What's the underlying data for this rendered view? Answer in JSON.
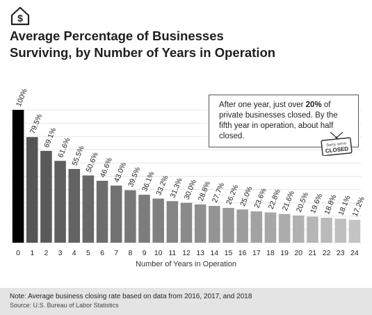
{
  "header": {
    "icon": "dollar-house-icon",
    "title_line1": "Average Percentage of Businesses",
    "title_line2": "Surviving, by Number of Years in Operation"
  },
  "callout": {
    "text_before": "After one year, just over ",
    "highlight": "20%",
    "text_after": " of private businesses closed. By the fifth year in operation, about half closed.",
    "sign_line1": "Sorry, we're",
    "sign_line2": "CLOSED"
  },
  "chart_data": {
    "type": "bar",
    "title": "Average Percentage of Businesses Surviving, by Number of Years in Operation",
    "xlabel": "Number of Years in Operation",
    "ylabel": "",
    "ylim": [
      0,
      100
    ],
    "grid": true,
    "categories": [
      "0",
      "1",
      "2",
      "3",
      "4",
      "5",
      "6",
      "7",
      "8",
      "9",
      "10",
      "11",
      "12",
      "13",
      "14",
      "15",
      "16",
      "17",
      "18",
      "19",
      "20",
      "21",
      "22",
      "23",
      "24"
    ],
    "values": [
      100,
      79.5,
      69.1,
      61.6,
      55.5,
      50.6,
      46.6,
      43.0,
      39.5,
      36.1,
      33.2,
      31.3,
      30.0,
      28.8,
      27.7,
      26.2,
      25.0,
      23.6,
      22.8,
      21.6,
      20.5,
      19.6,
      18.8,
      18.1,
      17.2
    ],
    "labels": [
      "100%",
      "79.5%",
      "69.1%",
      "61.6%",
      "55.5%",
      "50.6%",
      "46.6%",
      "43.0%",
      "39.5%",
      "36.1%",
      "33.2%",
      "31.3%",
      "30.0%",
      "28.8%",
      "27.7%",
      "26.2%",
      "25.0%",
      "23.6%",
      "22.8%",
      "21.6%",
      "20.5%",
      "19.6%",
      "18.8%",
      "18.1%",
      "17.2%"
    ],
    "colors": {
      "first": "#000000",
      "darkest": "#555555",
      "lightest": "#c4c4c4",
      "grid": "#e6e6e6"
    }
  },
  "footer": {
    "note": "Note: Average business closing rate based on data from 2016, 2017, and 2018",
    "source": "Source: U.S. Bureau of Labor Statistics"
  }
}
